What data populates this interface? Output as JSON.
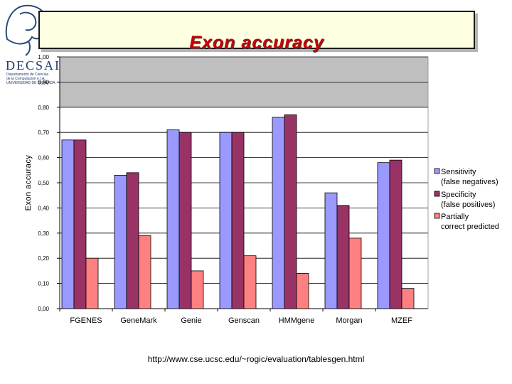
{
  "header": {
    "title": "Exon accuracy",
    "logo_word": "DECSAI",
    "logo_lines": [
      "Departamento de Ciencias",
      "de la Computación e I.A.",
      "UNIVERSIDAD DE GRANADA"
    ]
  },
  "footer": {
    "source_url": "http://www.cse.ucsc.edu/~rogic/evaluation/tablesgen.html"
  },
  "chart_data": {
    "type": "bar",
    "title": "Exon accuracy",
    "xlabel": "",
    "ylabel": "Exon accuracy",
    "ylim": [
      0,
      1
    ],
    "ytick_labels": [
      "0,00",
      "0,10",
      "0,20",
      "0,30",
      "0,40",
      "0,50",
      "0,60",
      "0,70",
      "0,80",
      "0,90",
      "1,00"
    ],
    "grid": true,
    "legend_position": "right",
    "categories": [
      "FGENES",
      "GeneMark",
      "Genie",
      "Genscan",
      "HMMgene",
      "Morgan",
      "MZEF"
    ],
    "series": [
      {
        "name": "Sensitivity (false negatives)",
        "color": "#9999ff",
        "values": [
          0.67,
          0.53,
          0.71,
          0.7,
          0.76,
          0.46,
          0.58
        ]
      },
      {
        "name": "Specificity (false positives)",
        "color": "#993366",
        "values": [
          0.67,
          0.54,
          0.7,
          0.7,
          0.77,
          0.41,
          0.59
        ]
      },
      {
        "name": "Partially correct predicted",
        "color": "#ff8080",
        "values": [
          0.2,
          0.29,
          0.15,
          0.21,
          0.14,
          0.28,
          0.08
        ]
      }
    ]
  }
}
